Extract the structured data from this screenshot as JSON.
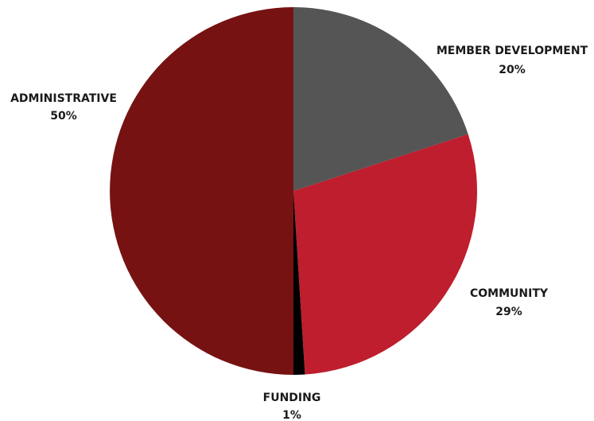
{
  "chart_data": {
    "type": "pie",
    "title": "",
    "start_angle_deg": 0,
    "direction": "clockwise",
    "slices": [
      {
        "label": "MEMBER DEVELOPMENT",
        "value_label": "20%",
        "value": 20,
        "color": "#555555"
      },
      {
        "label": "COMMUNITY",
        "value_label": "29%",
        "value": 29,
        "color": "#be1e2d"
      },
      {
        "label": "FUNDING",
        "value_label": "1%",
        "value": 1,
        "color": "#000000"
      },
      {
        "label": "ADMINISTRATIVE",
        "value_label": "50%",
        "value": 50,
        "color": "#771213"
      }
    ]
  }
}
